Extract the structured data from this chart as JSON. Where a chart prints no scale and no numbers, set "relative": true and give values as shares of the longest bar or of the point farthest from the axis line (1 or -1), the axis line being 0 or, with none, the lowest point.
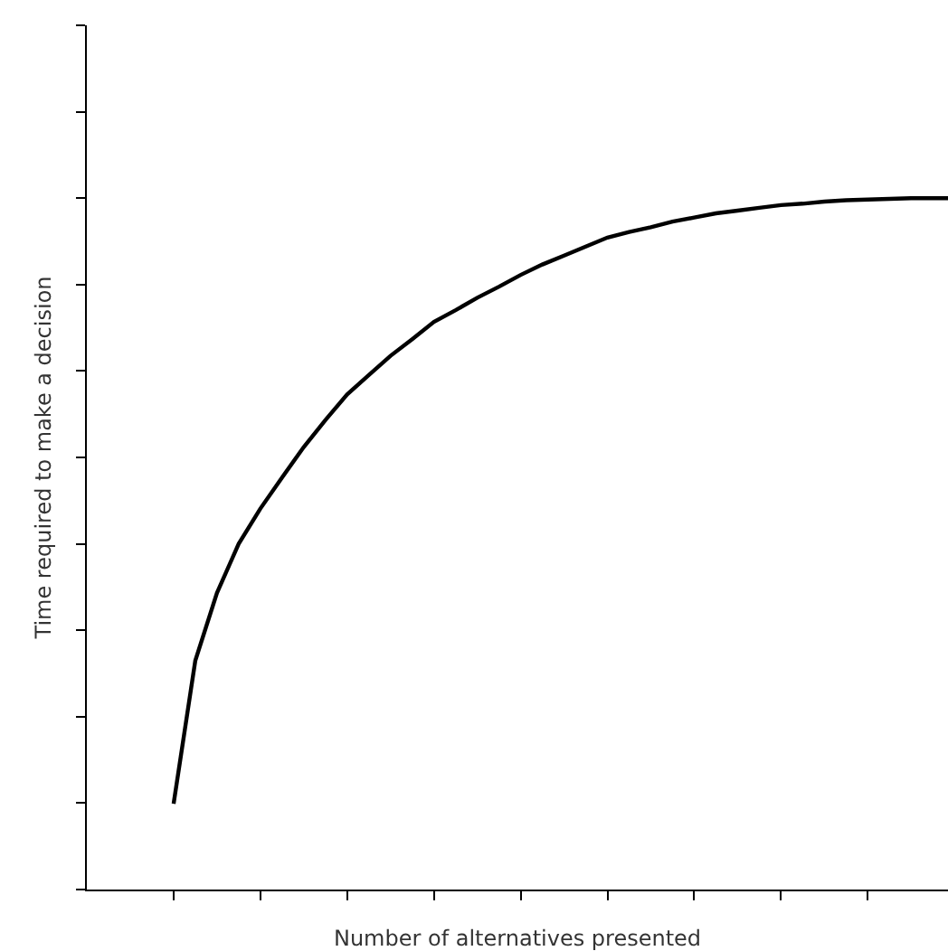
{
  "chart_data": {
    "type": "line",
    "relative": true,
    "xlabel": "Number of alternatives presented",
    "ylabel": "Time required to make a decision",
    "categories": [
      null,
      null,
      null,
      null,
      null,
      null,
      null,
      null,
      null,
      null,
      null,
      null,
      null,
      null,
      null,
      null,
      null,
      null,
      null,
      null,
      null,
      null,
      null,
      null,
      null,
      null,
      null,
      null,
      null,
      null,
      null,
      null,
      null,
      null,
      null,
      null,
      null
    ],
    "series": [
      {
        "color": "#000000",
        "values": [
          0.124,
          0.331,
          0.429,
          0.5,
          0.551,
          0.596,
          0.64,
          0.679,
          0.716,
          0.744,
          0.772,
          0.796,
          0.821,
          0.838,
          0.856,
          0.872,
          0.889,
          0.904,
          0.917,
          0.93,
          0.943,
          0.951,
          0.958,
          0.966,
          0.972,
          0.978,
          0.982,
          0.986,
          0.99,
          0.992,
          0.995,
          0.997,
          0.998,
          0.999,
          1,
          1,
          1
        ]
      }
    ],
    "grid": false,
    "marker": "none",
    "line_style": "solid"
  }
}
